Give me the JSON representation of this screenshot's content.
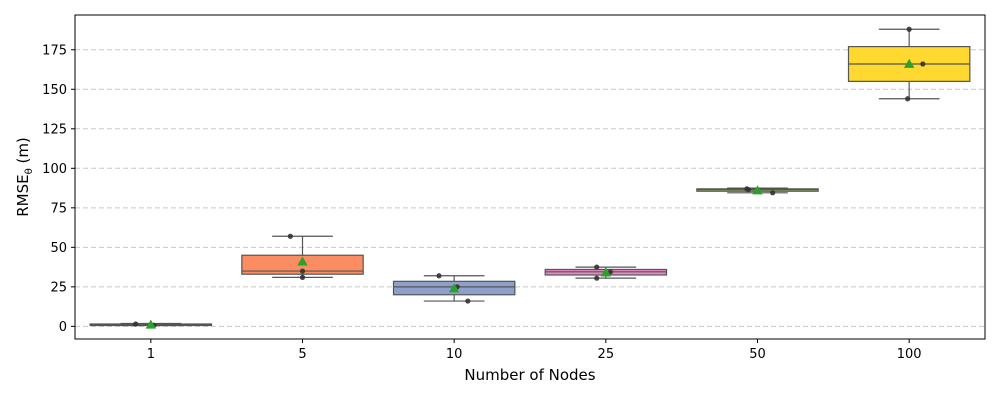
{
  "chart_data": {
    "type": "box",
    "xlabel": "Number of Nodes",
    "ylabel": {
      "main": "RMSE",
      "subscript": "θ",
      "unit": " (m)"
    },
    "categories": [
      "1",
      "5",
      "10",
      "25",
      "50",
      "100"
    ],
    "ylim": [
      -8,
      197
    ],
    "yticks": [
      0,
      25,
      50,
      75,
      100,
      125,
      150,
      175
    ],
    "grid": {
      "y": true,
      "style": "dashed"
    },
    "boxes": [
      {
        "category": "1",
        "whisker_low": 0.5,
        "q1": 0.6,
        "median": 1.0,
        "q3": 1.5,
        "whisker_high": 1.8,
        "mean": 1.0,
        "points": [
          1.5,
          0.6,
          0.9
        ],
        "color": "#66c2a5"
      },
      {
        "category": "5",
        "whisker_low": 31,
        "q1": 33,
        "median": 35,
        "q3": 45,
        "whisker_high": 57,
        "mean": 41,
        "points": [
          57,
          35,
          31
        ],
        "color": "#fc8d62"
      },
      {
        "category": "10",
        "whisker_low": 16,
        "q1": 20,
        "median": 25,
        "q3": 28.5,
        "whisker_high": 32,
        "mean": 24,
        "points": [
          32,
          25,
          16
        ],
        "color": "#8da0cb"
      },
      {
        "category": "25",
        "whisker_low": 30.5,
        "q1": 32.5,
        "median": 34.5,
        "q3": 36,
        "whisker_high": 37.5,
        "mean": 34,
        "points": [
          37.5,
          34.5,
          30.5
        ],
        "color": "#e78ac3"
      },
      {
        "category": "50",
        "whisker_low": 84.5,
        "q1": 85.5,
        "median": 86.5,
        "q3": 87,
        "whisker_high": 87.5,
        "mean": 86,
        "points": [
          87,
          84.5,
          86.5
        ],
        "color": "#a6d854"
      },
      {
        "category": "100",
        "whisker_low": 144,
        "q1": 155,
        "median": 166,
        "q3": 177,
        "whisker_high": 188,
        "mean": 166,
        "points": [
          188,
          166,
          144
        ],
        "color": "#ffd92f"
      }
    ],
    "point_offsets": [
      [
        -0.1,
        0.02,
        0.0
      ],
      [
        -0.08,
        0.0,
        0.0
      ],
      [
        -0.1,
        0.02,
        0.09
      ],
      [
        -0.06,
        0.03,
        -0.06
      ],
      [
        -0.07,
        0.1,
        -0.06
      ],
      [
        0.0,
        0.09,
        -0.01
      ]
    ],
    "mean_marker_color": "#2ca02c",
    "median_color": "#555555",
    "point_color": "#333333"
  }
}
